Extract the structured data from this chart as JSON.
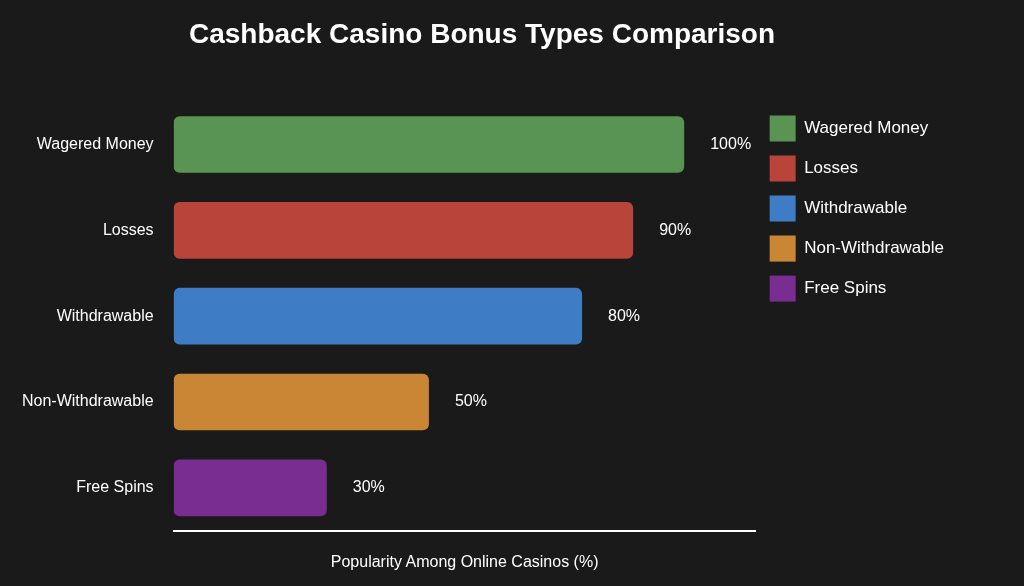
{
  "chart_data": {
    "type": "bar",
    "orientation": "horizontal",
    "stacked": true,
    "title": "Cashback Casino Bonus Types Comparison",
    "xlabel": "Popularity Among Online Casinos (%)",
    "categories": [
      "Wagered Money",
      "Losses",
      "Withdrawable",
      "Non-Withdrawable",
      "Free Spins"
    ],
    "series": [
      {
        "name": "Wagered Money",
        "color": "#5a9452",
        "values": [
          100,
          null,
          null,
          null,
          null
        ],
        "value_labels": [
          "100%",
          null,
          null,
          null,
          null
        ]
      },
      {
        "name": "Losses",
        "color": "#b9443a",
        "values": [
          null,
          90,
          null,
          null,
          null
        ],
        "value_labels": [
          null,
          "90%",
          null,
          null,
          null
        ]
      },
      {
        "name": "Withdrawable",
        "color": "#3f7cc6",
        "values": [
          null,
          null,
          80,
          null,
          null
        ],
        "value_labels": [
          null,
          null,
          "80%",
          null,
          null
        ]
      },
      {
        "name": "Non-Withdrawable",
        "color": "#c98635",
        "values": [
          null,
          null,
          null,
          50,
          null
        ],
        "value_labels": [
          null,
          null,
          null,
          "50%",
          null
        ]
      },
      {
        "name": "Free Spins",
        "color": "#7a2d90",
        "values": [
          null,
          null,
          null,
          null,
          30
        ],
        "value_labels": [
          null,
          null,
          null,
          null,
          "30%"
        ]
      }
    ],
    "xlim": [
      0,
      114
    ],
    "tick_labels": "y",
    "grid": false,
    "legend": "top right"
  }
}
